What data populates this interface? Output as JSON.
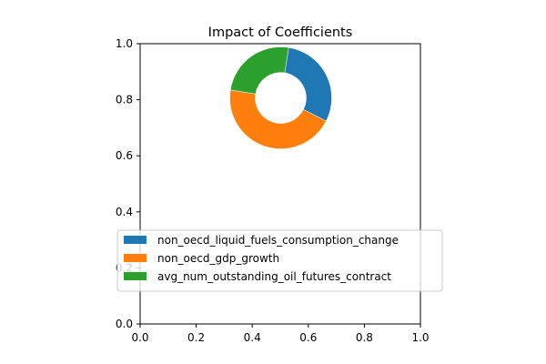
{
  "chart_data": {
    "type": "pie",
    "title": "Impact of Coefficients",
    "xlabel": "",
    "ylabel": "",
    "xlim": [
      0,
      1
    ],
    "ylim": [
      0,
      1
    ],
    "xticks": [
      "0.0",
      "0.2",
      "0.4",
      "0.6",
      "0.8",
      "1.0"
    ],
    "yticks": [
      "0.0",
      "0.2",
      "0.4",
      "0.6",
      "0.8",
      "1.0"
    ],
    "donut": true,
    "center": [
      0.5,
      0.8
    ],
    "grid": false,
    "legend_position": "lower-center",
    "slices": [
      {
        "label": "non_oecd_liquid_fuels_consumption_change",
        "value": 0.3,
        "color": "#1f77b4"
      },
      {
        "label": "non_oecd_gdp_growth",
        "value": 0.45,
        "color": "#ff7f0e"
      },
      {
        "label": "avg_num_outstanding_oil_futures_contract",
        "value": 0.25,
        "color": "#2ca02c"
      }
    ]
  }
}
